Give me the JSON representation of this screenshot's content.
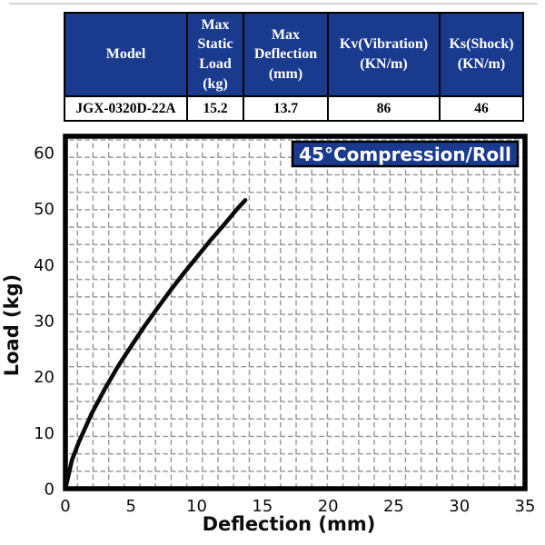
{
  "table": {
    "headers": [
      {
        "label": "Model"
      },
      {
        "label": "Max\nStatic\nLoad\n(kg)"
      },
      {
        "label": "Max\nDeflection\n(mm)"
      },
      {
        "label": "Kv(Vibration)\n(KN/m)"
      },
      {
        "label": "Ks(Shock)\n(KN/m)"
      }
    ],
    "row": [
      "JGX-0320D-22A",
      "15.2",
      "13.7",
      "86",
      "46"
    ]
  },
  "colors": {
    "header_bg": "#1a3a8e",
    "badge_bg": "#1a3a8e",
    "grid_gray": "#979797"
  },
  "chart_data": {
    "type": "line",
    "title": "45°Compression/Roll",
    "xlabel": "Deflection (mm)",
    "ylabel": "Load (kg)",
    "xlim": [
      0,
      35
    ],
    "ylim": [
      0,
      62.9
    ],
    "xticks": [
      0,
      5,
      10,
      15,
      20,
      25,
      30,
      35
    ],
    "yticks": [
      0,
      10,
      20,
      30,
      40,
      50,
      60
    ],
    "grid": "dashed",
    "legend": "none",
    "series": [
      {
        "name": "45°Compression/Roll",
        "x": [
          0,
          0.5,
          1,
          2,
          3,
          4,
          5,
          6,
          7,
          8,
          9,
          10,
          11,
          12,
          13,
          13.7
        ],
        "y": [
          0,
          5.1,
          8.2,
          13.4,
          17.8,
          21.8,
          25.4,
          28.9,
          32.2,
          35.4,
          38.4,
          41.3,
          44.2,
          46.9,
          49.7,
          51.5
        ]
      }
    ]
  }
}
